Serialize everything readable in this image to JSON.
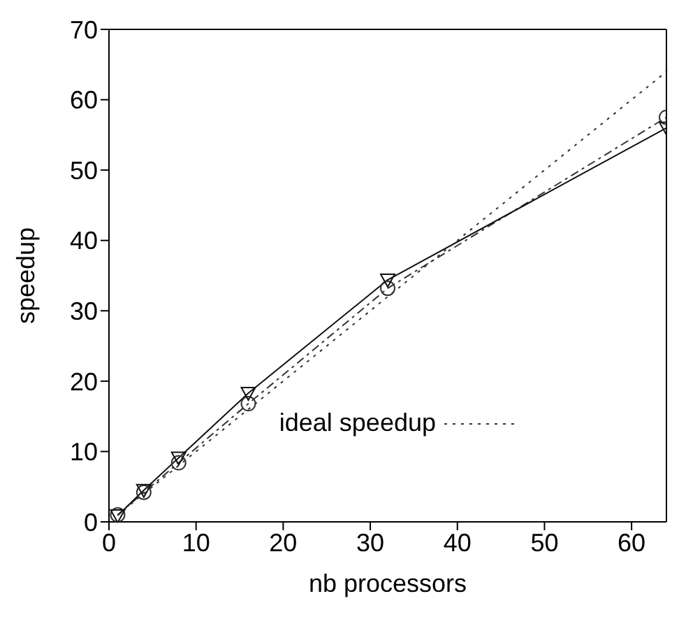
{
  "chart_data": {
    "type": "line",
    "xlabel": "nb processors",
    "ylabel": "speedup",
    "x": [
      1,
      4,
      8,
      16,
      32,
      64
    ],
    "xlim": [
      0,
      64
    ],
    "xticks": [
      0,
      10,
      20,
      30,
      40,
      50,
      60
    ],
    "ylim": [
      0,
      70
    ],
    "yticks": [
      0,
      10,
      20,
      30,
      40,
      50,
      60,
      70
    ],
    "legend": "bottom right",
    "series": [
      {
        "color": "#333333",
        "values": [
          1,
          4.2,
          8.4,
          16.8,
          33.2,
          57.5
        ],
        "marker": "circle",
        "line_style": "dashdot"
      },
      {
        "color": "#111111",
        "values": [
          0.9,
          4.5,
          9.1,
          18.3,
          34.4,
          56
        ],
        "marker": "triangle",
        "line_style": "solid"
      },
      {
        "name": "ideal speedup",
        "color": "#333333",
        "values": [
          1,
          4,
          8,
          16,
          32,
          64
        ],
        "marker": "none",
        "line_style": "dotted"
      }
    ]
  }
}
